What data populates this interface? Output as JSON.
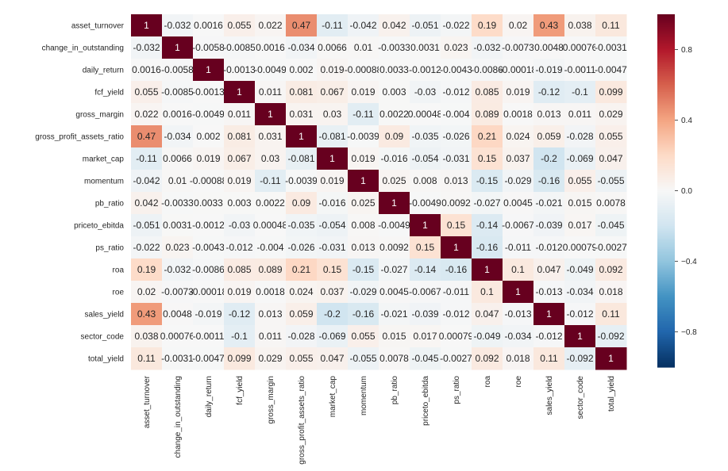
{
  "chart_data": {
    "type": "heatmap",
    "title": "",
    "xlabel": "",
    "ylabel": "",
    "labels": [
      "asset_turnover",
      "change_in_outstanding",
      "daily_return",
      "fcf_yield",
      "gross_margin",
      "gross_profit_assets_ratio",
      "market_cap",
      "momentum",
      "pb_ratio",
      "priceto_ebitda",
      "ps_ratio",
      "roa",
      "roe",
      "sales_yield",
      "sector_code",
      "total_yield"
    ],
    "matrix": [
      [
        "1",
        "-0.032",
        "0.0016",
        "0.055",
        "0.022",
        "0.47",
        "-0.11",
        "-0.042",
        "0.042",
        "-0.051",
        "-0.022",
        "0.19",
        "0.02",
        "0.43",
        "0.038",
        "0.11"
      ],
      [
        "-0.032",
        "1",
        "-0.0058",
        "-0.0085",
        "0.0016",
        "-0.034",
        "0.0066",
        "0.01",
        "-0.0033",
        "0.0031",
        "0.023",
        "-0.032",
        "-0.0073",
        "0.0048",
        "0.00076",
        "-0.0031"
      ],
      [
        "0.0016",
        "-0.0058",
        "1",
        "-0.0013",
        "-0.0049",
        "0.002",
        "0.019",
        "-0.00088",
        "0.0033",
        "-0.0012",
        "-0.0043",
        "-0.0086",
        "-0.00018",
        "-0.019",
        "-0.0011",
        "-0.0047"
      ],
      [
        "0.055",
        "-0.0085",
        "-0.0013",
        "1",
        "0.011",
        "0.081",
        "0.067",
        "0.019",
        "0.003",
        "-0.03",
        "-0.012",
        "0.085",
        "0.019",
        "-0.12",
        "-0.1",
        "0.099"
      ],
      [
        "0.022",
        "0.0016",
        "-0.0049",
        "0.011",
        "1",
        "0.031",
        "0.03",
        "-0.11",
        "0.0022",
        "0.00048",
        "-0.004",
        "0.089",
        "0.0018",
        "0.013",
        "0.011",
        "0.029"
      ],
      [
        "0.47",
        "-0.034",
        "0.002",
        "0.081",
        "0.031",
        "1",
        "-0.081",
        "-0.0039",
        "0.09",
        "-0.035",
        "-0.026",
        "0.21",
        "0.024",
        "0.059",
        "-0.028",
        "0.055"
      ],
      [
        "-0.11",
        "0.0066",
        "0.019",
        "0.067",
        "0.03",
        "-0.081",
        "1",
        "0.019",
        "-0.016",
        "-0.054",
        "-0.031",
        "0.15",
        "0.037",
        "-0.2",
        "-0.069",
        "0.047"
      ],
      [
        "-0.042",
        "0.01",
        "-0.00088",
        "0.019",
        "-0.11",
        "-0.0039",
        "0.019",
        "1",
        "0.025",
        "0.008",
        "0.013",
        "-0.15",
        "-0.029",
        "-0.16",
        "0.055",
        "-0.055"
      ],
      [
        "0.042",
        "-0.0033",
        "0.0033",
        "0.003",
        "0.0022",
        "0.09",
        "-0.016",
        "0.025",
        "1",
        "-0.0049",
        "0.0092",
        "-0.027",
        "0.0045",
        "-0.021",
        "0.015",
        "0.0078"
      ],
      [
        "-0.051",
        "0.0031",
        "-0.0012",
        "-0.03",
        "0.00048",
        "-0.035",
        "-0.054",
        "0.008",
        "-0.0049",
        "1",
        "0.15",
        "-0.14",
        "-0.0067",
        "-0.039",
        "0.017",
        "-0.045"
      ],
      [
        "-0.022",
        "0.023",
        "-0.0043",
        "-0.012",
        "-0.004",
        "-0.026",
        "-0.031",
        "0.013",
        "0.0092",
        "0.15",
        "1",
        "-0.16",
        "-0.011",
        "-0.012",
        "0.00079",
        "-0.0027"
      ],
      [
        "0.19",
        "-0.032",
        "-0.0086",
        "0.085",
        "0.089",
        "0.21",
        "0.15",
        "-0.15",
        "-0.027",
        "-0.14",
        "-0.16",
        "1",
        "0.1",
        "0.047",
        "-0.049",
        "0.092"
      ],
      [
        "0.02",
        "-0.0073",
        "-0.00018",
        "0.019",
        "0.0018",
        "0.024",
        "0.037",
        "-0.029",
        "0.0045",
        "-0.0067",
        "-0.011",
        "0.1",
        "1",
        "-0.013",
        "-0.034",
        "0.018"
      ],
      [
        "0.43",
        "0.0048",
        "-0.019",
        "-0.12",
        "0.013",
        "0.059",
        "-0.2",
        "-0.16",
        "-0.021",
        "-0.039",
        "-0.012",
        "0.047",
        "-0.013",
        "1",
        "-0.012",
        "0.11"
      ],
      [
        "0.038",
        "0.00076",
        "-0.0011",
        "-0.1",
        "0.011",
        "-0.028",
        "-0.069",
        "0.055",
        "0.015",
        "0.017",
        "0.00079",
        "-0.049",
        "-0.034",
        "-0.012",
        "1",
        "-0.092"
      ],
      [
        "0.11",
        "-0.0031",
        "-0.0047",
        "0.099",
        "0.029",
        "0.055",
        "0.047",
        "-0.055",
        "0.0078",
        "-0.045",
        "-0.0027",
        "0.092",
        "0.018",
        "0.11",
        "-0.092",
        "1"
      ]
    ],
    "vmin": -1,
    "vmax": 1,
    "colormap": "RdBu_r",
    "colorbar_ticks": [
      "0.8",
      "0.4",
      "0.0",
      "−0.4",
      "−0.8"
    ],
    "colorbar_tick_values": [
      0.8,
      0.4,
      0.0,
      -0.4,
      -0.8
    ]
  }
}
